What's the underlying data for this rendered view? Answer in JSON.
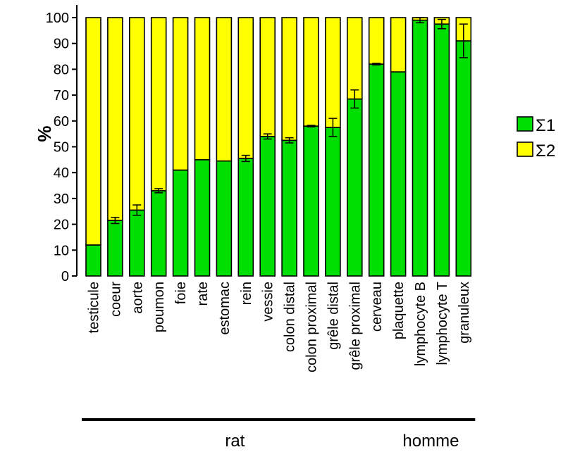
{
  "chart_data": {
    "type": "bar",
    "stacked": true,
    "ylabel": "%",
    "ylim": [
      0,
      100
    ],
    "yticks": [
      0,
      10,
      20,
      30,
      40,
      50,
      60,
      70,
      80,
      90,
      100
    ],
    "categories": [
      "testicule",
      "coeur",
      "aorte",
      "poumon",
      "foie",
      "rate",
      "estomac",
      "rein",
      "vessie",
      "colon distal",
      "colon proximal",
      "grêle distal",
      "grêle proximal",
      "cerveau",
      "plaquette",
      "lymphocyte B",
      "lymphocyte T",
      "granuleux"
    ],
    "series": [
      {
        "name": "Σ1",
        "color": "#00e000",
        "values": [
          12,
          21.5,
          25.5,
          33,
          41,
          45,
          44.5,
          45.5,
          54,
          52.5,
          58,
          57.5,
          68.5,
          82,
          79,
          99,
          97.5,
          91
        ],
        "error": [
          0,
          1.2,
          2,
          0.8,
          0,
          0,
          0,
          1.2,
          1,
          1,
          0.3,
          3.5,
          3.5,
          0.3,
          0,
          1,
          1.8,
          6.5
        ]
      },
      {
        "name": "Σ2",
        "color": "#ffff00",
        "values": [
          88,
          78.5,
          74.5,
          67,
          59,
          55,
          55.5,
          54.5,
          46,
          47.5,
          42,
          42.5,
          31.5,
          18,
          21,
          1,
          2.5,
          9
        ]
      }
    ],
    "groups": [
      {
        "label": "rat",
        "from": 0,
        "to": 13
      },
      {
        "label": "homme",
        "from": 14,
        "to": 17
      }
    ],
    "legend_position": "right",
    "grid": false
  }
}
